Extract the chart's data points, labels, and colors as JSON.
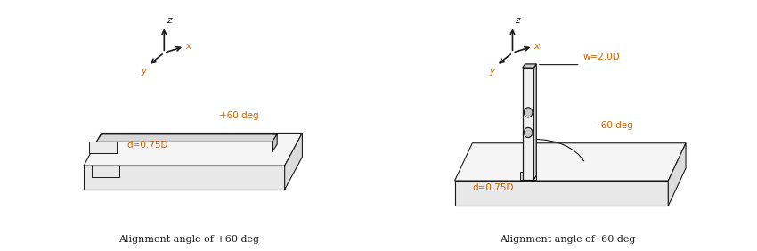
{
  "fig_width": 8.5,
  "fig_height": 2.82,
  "dpi": 100,
  "bg_color": "#ffffff",
  "line_color": "#1a1a1a",
  "orange_color": "#cc6600",
  "title1": "Alignment angle of +60 deg",
  "title2": "Alignment angle of -60 deg",
  "ann1_angle": "+60 deg",
  "ann1_d": "d=0.75D",
  "ann2_w": "w=2.0D",
  "ann2_angle": "-60 deg",
  "ann2_d": "d=0.75D"
}
